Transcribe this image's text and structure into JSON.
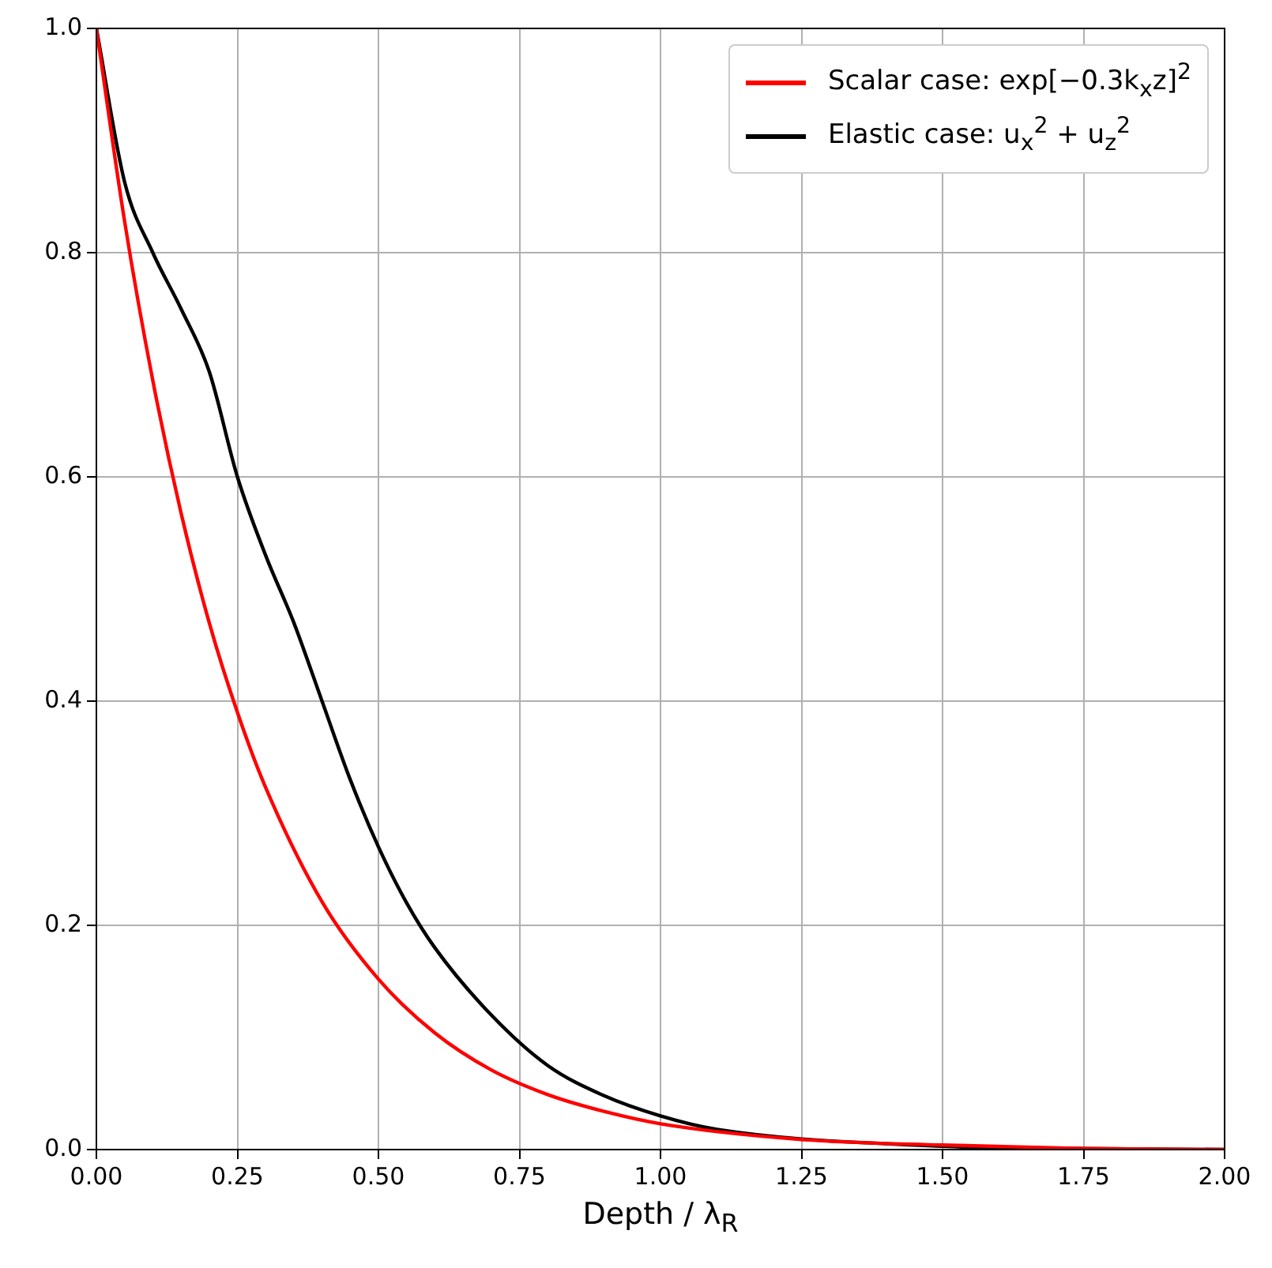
{
  "chart_data": {
    "type": "line",
    "xlabel": "Depth / λ$_{R}$",
    "xlim": [
      0,
      2
    ],
    "xticks": [
      {
        "value": 0,
        "label": "0.00"
      },
      {
        "value": 0.25,
        "label": "0.25"
      },
      {
        "value": 0.5,
        "label": "0.50"
      },
      {
        "value": 0.75,
        "label": "0.75"
      },
      {
        "value": 1,
        "label": "1.00"
      },
      {
        "value": 1.25,
        "label": "1.25"
      },
      {
        "value": 1.5,
        "label": "1.50"
      },
      {
        "value": 1.75,
        "label": "1.75"
      },
      {
        "value": 2,
        "label": "2.00"
      }
    ],
    "ylim": [
      0,
      1
    ],
    "yticks": [
      {
        "value": 0,
        "label": "0.0"
      },
      {
        "value": 0.2,
        "label": "0.2"
      },
      {
        "value": 0.4,
        "label": "0.4"
      },
      {
        "value": 0.6,
        "label": "0.6"
      },
      {
        "value": 0.8,
        "label": "0.8"
      },
      {
        "value": 1,
        "label": "1.0"
      }
    ],
    "grid": true,
    "legend": "top right",
    "marker": "none",
    "line_style": "solid",
    "series": [
      {
        "name": "Scalar case: exp[−0.3k$_{x}$z]$^{2}$",
        "color": "#ff0000",
        "x": [
          0,
          0.05,
          0.1,
          0.15,
          0.2,
          0.25,
          0.3,
          0.4,
          0.5,
          0.6,
          0.7,
          0.8,
          0.9,
          1.0,
          1.25,
          1.5,
          1.75,
          2.0
        ],
        "values": [
          1,
          0.828,
          0.686,
          0.568,
          0.47,
          0.39,
          0.323,
          0.221,
          0.152,
          0.104,
          0.071,
          0.049,
          0.034,
          0.023,
          0.009,
          0.004,
          0.001,
          0
        ]
      },
      {
        "name": "Elastic case: u$_{x}$$^{2}$ + u$_{z}$$^{2}$",
        "color": "#000000",
        "x": [
          0,
          0.05,
          0.1,
          0.15,
          0.2,
          0.25,
          0.3,
          0.35,
          0.4,
          0.45,
          0.5,
          0.55,
          0.6,
          0.7,
          0.8,
          0.9,
          1.0,
          1.1,
          1.5,
          1.75,
          2.0
        ],
        "values": [
          1,
          0.863,
          0.8,
          0.75,
          0.694,
          0.6,
          0.53,
          0.47,
          0.4,
          0.33,
          0.27,
          0.22,
          0.18,
          0.12,
          0.075,
          0.048,
          0.03,
          0.018,
          0.003,
          0.001,
          0
        ]
      }
    ]
  }
}
